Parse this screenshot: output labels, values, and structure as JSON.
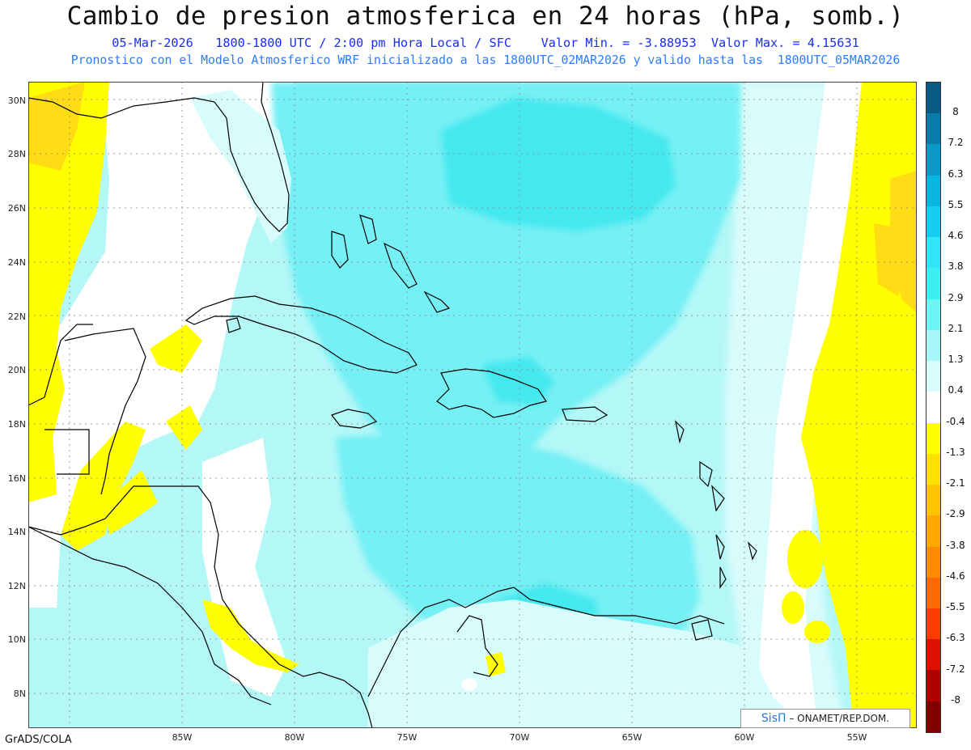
{
  "header": {
    "title": "Cambio de presion atmosferica en 24 horas (hPa, somb.)",
    "line1": "05-Mar-2026   1800-1800 UTC / 2:00 pm Hora Local / SFC    Valor Min. = -3.88953  Valor Max. = 4.15631",
    "line2": "Pronostico con el Modelo Atmosferico WRF inicializado a las 1800UTC_02MAR2026 y valido hasta las  1800UTC_05MAR2026"
  },
  "lat_labels": [
    "30N",
    "28N",
    "26N",
    "24N",
    "22N",
    "20N",
    "18N",
    "16N",
    "14N",
    "12N",
    "10N",
    "8N"
  ],
  "lon_labels": [
    "85W",
    "80W",
    "75W",
    "70W",
    "65W",
    "60W",
    "55W"
  ],
  "footer": "GrADS/COLA",
  "credit": {
    "brand": "SisΠ",
    "text": "– ONAMET/REP.DOM."
  },
  "colorbar": {
    "labels": [
      "8",
      "7.2",
      "6.3",
      "5.5",
      "4.6",
      "3.8",
      "2.9",
      "2.1",
      "1.3",
      "0.4",
      "-0.4",
      "-1.3",
      "-2.1",
      "-2.9",
      "-3.8",
      "-4.6",
      "-5.5",
      "-6.3",
      "-7.2",
      "-8"
    ],
    "colors": [
      "#0a5a86",
      "#0b7aa8",
      "#0a98c6",
      "#06b6e0",
      "#14cef0",
      "#2ee6f5",
      "#3af0f0",
      "#70f5f5",
      "#a6f8f8",
      "#d9fbfb",
      "#ffffff",
      "#ffff00",
      "#ffe100",
      "#ffc400",
      "#ffa800",
      "#ff8c00",
      "#ff6a00",
      "#ff3c00",
      "#e01000",
      "#b00000",
      "#800000"
    ]
  },
  "colors": {
    "sea_base": "#b4f7f7",
    "land_white": "#ffffff",
    "yellow": "#ffff00",
    "gold": "#ffdc14",
    "cyan_mid": "#74f0f4",
    "cyan_strong": "#45e8ef",
    "pale": "#d8fbfb"
  }
}
